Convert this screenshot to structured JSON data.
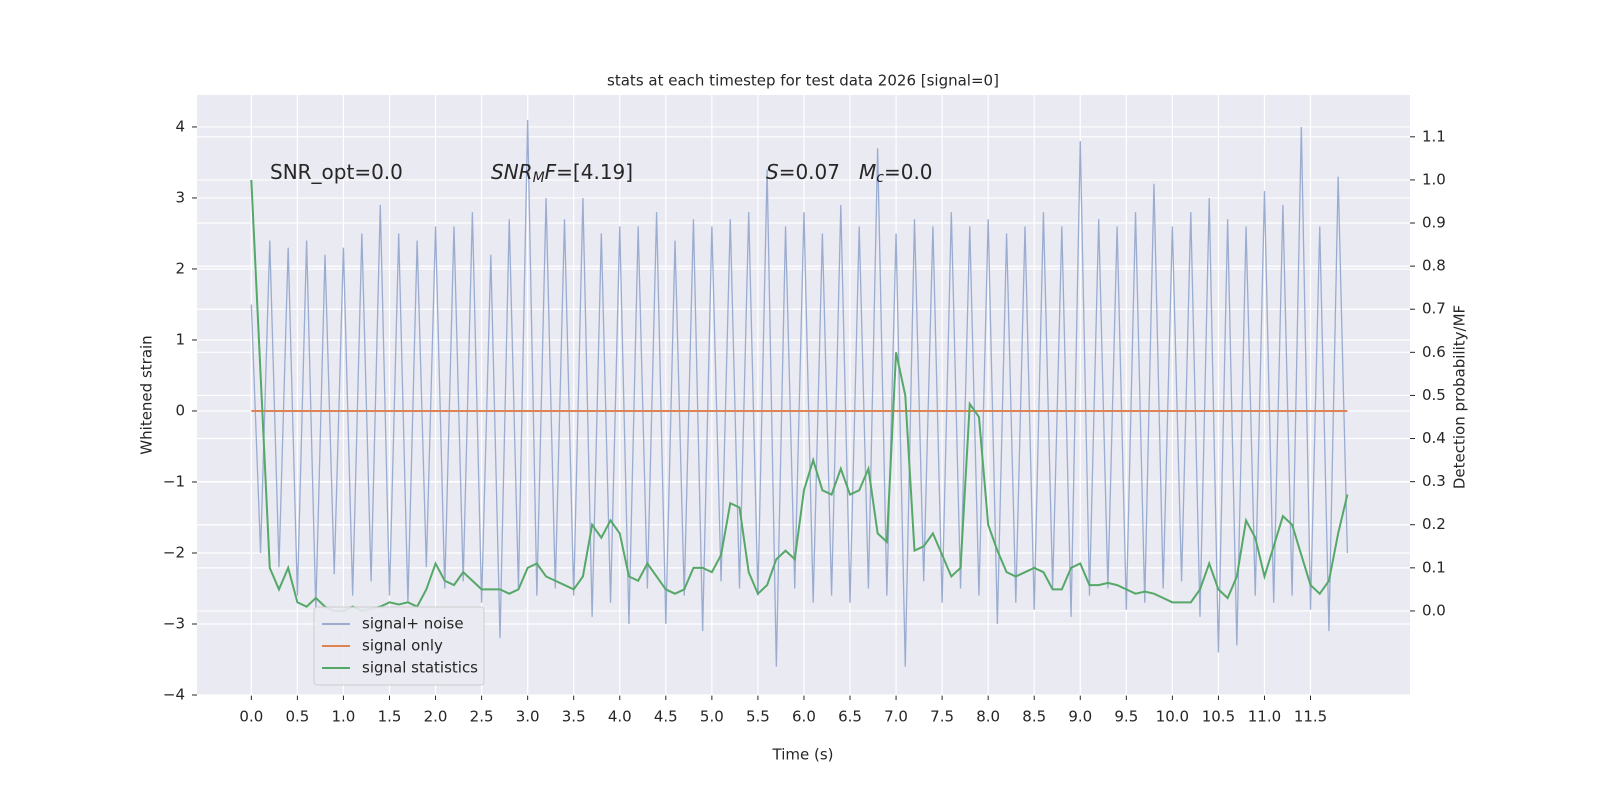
{
  "chart_data": {
    "type": "line",
    "title": "stats at each timestep for test data 2026 [signal=0]",
    "xlabel": "Time (s)",
    "ylabel": "Whitened strain",
    "y2label": "Detection probability/MF",
    "annotations": [
      [
        {
          "text": "SNR_opt=0.0"
        }
      ],
      [
        {
          "text": "SNR",
          "style": "italic"
        },
        {
          "text": "M",
          "style": "italic-sub"
        },
        {
          "text": "F",
          "style": "italic"
        },
        {
          "text": "=[4.19]"
        }
      ],
      [
        {
          "text": "S",
          "style": "italic"
        },
        {
          "text": "=0.07"
        }
      ],
      [
        {
          "text": "M",
          "style": "italic"
        },
        {
          "text": "c",
          "style": "italic-sub"
        },
        {
          "text": "=0.0"
        }
      ]
    ],
    "x": [
      0.0,
      0.1,
      0.2,
      0.3,
      0.4,
      0.5,
      0.6,
      0.7,
      0.8,
      0.9,
      1.0,
      1.1,
      1.2,
      1.3,
      1.4,
      1.5,
      1.6,
      1.7,
      1.8,
      1.9,
      2.0,
      2.1,
      2.2,
      2.3,
      2.4,
      2.5,
      2.6,
      2.7,
      2.8,
      2.9,
      3.0,
      3.1,
      3.2,
      3.3,
      3.4,
      3.5,
      3.6,
      3.7,
      3.8,
      3.9,
      4.0,
      4.1,
      4.2,
      4.3,
      4.4,
      4.5,
      4.6,
      4.7,
      4.8,
      4.9,
      5.0,
      5.1,
      5.2,
      5.3,
      5.4,
      5.5,
      5.6,
      5.7,
      5.8,
      5.9,
      6.0,
      6.1,
      6.2,
      6.3,
      6.4,
      6.5,
      6.6,
      6.7,
      6.8,
      6.9,
      7.0,
      7.1,
      7.2,
      7.3,
      7.4,
      7.5,
      7.6,
      7.7,
      7.8,
      7.9,
      8.0,
      8.1,
      8.2,
      8.3,
      8.4,
      8.5,
      8.6,
      8.7,
      8.8,
      8.9,
      9.0,
      9.1,
      9.2,
      9.3,
      9.4,
      9.5,
      9.6,
      9.7,
      9.8,
      9.9,
      10.0,
      10.1,
      10.2,
      10.3,
      10.4,
      10.5,
      10.6,
      10.7,
      10.8,
      10.9,
      11.0,
      11.1,
      11.2,
      11.3,
      11.4,
      11.5,
      11.6,
      11.7,
      11.8,
      11.9
    ],
    "series": [
      {
        "name": "signal+ noise",
        "color": "#9aacd0",
        "values": [
          1.5,
          -2.0,
          2.4,
          -2.2,
          2.3,
          -2.6,
          2.4,
          -2.8,
          2.2,
          -2.3,
          2.3,
          -2.6,
          2.5,
          -2.4,
          2.9,
          -2.6,
          2.5,
          -2.7,
          2.4,
          -2.2,
          2.6,
          -2.5,
          2.6,
          -2.4,
          2.8,
          -2.7,
          2.2,
          -3.2,
          2.7,
          -2.5,
          4.1,
          -2.6,
          3.0,
          -2.5,
          2.7,
          -2.6,
          3.0,
          -2.9,
          2.5,
          -2.7,
          2.6,
          -3.0,
          2.6,
          -2.5,
          2.8,
          -3.0,
          2.4,
          -2.6,
          2.7,
          -3.1,
          2.6,
          -2.4,
          2.7,
          -2.5,
          2.8,
          -2.6,
          3.4,
          -3.6,
          2.6,
          -2.5,
          2.8,
          -2.7,
          2.5,
          -2.6,
          2.9,
          -2.7,
          2.6,
          -2.5,
          3.7,
          -2.6,
          2.5,
          -3.6,
          2.7,
          -2.4,
          2.6,
          -2.7,
          2.8,
          -2.5,
          2.6,
          -2.6,
          2.7,
          -3.0,
          2.5,
          -2.7,
          2.6,
          -2.8,
          2.8,
          -2.5,
          2.6,
          -2.9,
          3.8,
          -2.6,
          2.7,
          -2.5,
          2.6,
          -2.8,
          2.8,
          -2.7,
          3.2,
          -2.5,
          2.6,
          -2.4,
          2.8,
          -2.9,
          3.0,
          -3.4,
          2.7,
          -3.3,
          2.6,
          -2.6,
          3.1,
          -2.7,
          2.9,
          -2.6,
          4.0,
          -2.8,
          2.6,
          -3.1,
          3.3,
          -2.0
        ]
      },
      {
        "name": "signal only",
        "color": "#dd8452",
        "values": [
          0,
          0,
          0,
          0,
          0,
          0,
          0,
          0,
          0,
          0,
          0,
          0,
          0,
          0,
          0,
          0,
          0,
          0,
          0,
          0,
          0,
          0,
          0,
          0,
          0,
          0,
          0,
          0,
          0,
          0,
          0,
          0,
          0,
          0,
          0,
          0,
          0,
          0,
          0,
          0,
          0,
          0,
          0,
          0,
          0,
          0,
          0,
          0,
          0,
          0,
          0,
          0,
          0,
          0,
          0,
          0,
          0,
          0,
          0,
          0,
          0,
          0,
          0,
          0,
          0,
          0,
          0,
          0,
          0,
          0,
          0,
          0,
          0,
          0,
          0,
          0,
          0,
          0,
          0,
          0,
          0,
          0,
          0,
          0,
          0,
          0,
          0,
          0,
          0,
          0,
          0,
          0,
          0,
          0,
          0,
          0,
          0,
          0,
          0,
          0,
          0,
          0,
          0,
          0,
          0,
          0,
          0,
          0,
          0,
          0,
          0,
          0,
          0,
          0,
          0,
          0,
          0,
          0,
          0,
          0
        ]
      },
      {
        "name": "signal statistics",
        "color": "#55a868",
        "axis": "y2",
        "values": [
          1.0,
          0.55,
          0.1,
          0.05,
          0.1,
          0.02,
          0.01,
          0.03,
          0.01,
          0.0,
          0.0,
          0.01,
          0.0,
          0.005,
          0.01,
          0.02,
          0.015,
          0.02,
          0.01,
          0.05,
          0.11,
          0.07,
          0.06,
          0.09,
          0.07,
          0.05,
          0.05,
          0.05,
          0.04,
          0.05,
          0.1,
          0.11,
          0.08,
          0.07,
          0.06,
          0.05,
          0.08,
          0.2,
          0.17,
          0.21,
          0.18,
          0.08,
          0.07,
          0.11,
          0.08,
          0.05,
          0.04,
          0.05,
          0.1,
          0.1,
          0.09,
          0.13,
          0.25,
          0.24,
          0.09,
          0.04,
          0.06,
          0.12,
          0.14,
          0.12,
          0.28,
          0.35,
          0.28,
          0.27,
          0.33,
          0.27,
          0.28,
          0.33,
          0.18,
          0.16,
          0.6,
          0.5,
          0.14,
          0.15,
          0.18,
          0.13,
          0.08,
          0.1,
          0.48,
          0.45,
          0.2,
          0.14,
          0.09,
          0.08,
          0.09,
          0.1,
          0.09,
          0.05,
          0.05,
          0.1,
          0.11,
          0.06,
          0.06,
          0.065,
          0.06,
          0.05,
          0.04,
          0.045,
          0.04,
          0.03,
          0.02,
          0.02,
          0.02,
          0.05,
          0.11,
          0.05,
          0.03,
          0.08,
          0.21,
          0.17,
          0.08,
          0.15,
          0.22,
          0.2,
          0.13,
          0.06,
          0.04,
          0.07,
          0.18,
          0.27
        ]
      }
    ],
    "xlim": [
      -0.59,
      12.58
    ],
    "ylim": [
      -4,
      4.45
    ],
    "y2lim": [
      -0.195,
      1.197
    ],
    "xticks": [
      {
        "value": 0,
        "label": "0.0"
      },
      0.5,
      {
        "value": 1,
        "label": "1.0"
      },
      1.5,
      {
        "value": 2,
        "label": "2.0"
      },
      2.5,
      {
        "value": 3,
        "label": "3.0"
      },
      3.5,
      {
        "value": 4,
        "label": "4.0"
      },
      4.5,
      {
        "value": 5,
        "label": "5.0"
      },
      5.5,
      {
        "value": 6,
        "label": "6.0"
      },
      6.5,
      {
        "value": 7,
        "label": "7.0"
      },
      7.5,
      {
        "value": 8,
        "label": "8.0"
      },
      8.5,
      {
        "value": 9,
        "label": "9.0"
      },
      9.5,
      {
        "value": 10,
        "label": "10.0"
      },
      10.5,
      {
        "value": 11,
        "label": "11.0"
      },
      11.5
    ],
    "yticks": [
      {
        "value": -4,
        "label": "−4"
      },
      {
        "value": -3,
        "label": "−3"
      },
      {
        "value": -2,
        "label": "−2"
      },
      {
        "value": -1,
        "label": "−1"
      },
      0,
      1,
      2,
      3,
      4
    ],
    "y2ticks": [
      {
        "value": 0,
        "label": "0.0"
      },
      0.1,
      0.2,
      0.3,
      0.4,
      0.5,
      0.6,
      0.7,
      0.8,
      0.9,
      {
        "value": 1,
        "label": "1.0"
      },
      1.1
    ],
    "grid": true,
    "legend": "lower left"
  }
}
